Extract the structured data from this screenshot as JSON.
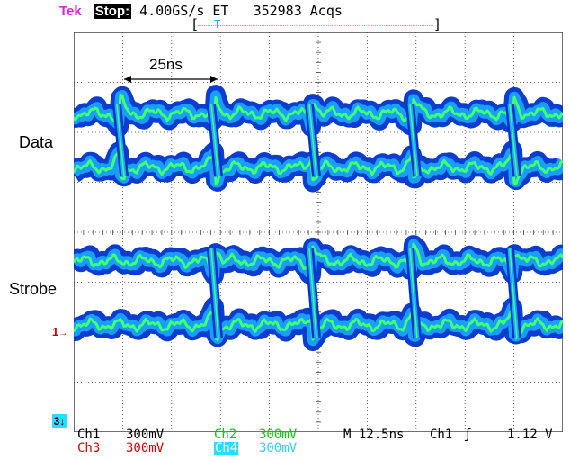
{
  "header": {
    "brand": "Tek",
    "state": "Stop:",
    "rate": "4.00GS/s ET",
    "acqs": "352983 Acqs"
  },
  "trigger_bar": {
    "left": "[",
    "marker": "T",
    "right": "]"
  },
  "annotations": {
    "time_span": "25ns",
    "data_label": "Data",
    "strobe_label": "Strobe",
    "ch1_marker": "1",
    "ch3_marker": "3"
  },
  "footer": {
    "ch1_name": "Ch1",
    "ch1_scale": "300mV",
    "ch2_name": "Ch2",
    "ch2_scale": "300mV",
    "timebase": "M 12.5ns",
    "trig_source": "Ch1",
    "trig_slope": "ʃ",
    "trig_level": "1.12 V",
    "ch3_name": "Ch3",
    "ch3_scale": "300mV",
    "ch4_name": "Ch4",
    "ch4_scale": "300mV"
  },
  "colors": {
    "ch1": "#000000",
    "ch2": "#00e000",
    "ch3": "#e00000",
    "ch4": "#22e0ff",
    "trace_outer": "#0033cc",
    "trace_mid": "#1aa8ff",
    "trace_core": "#40ff70"
  }
}
